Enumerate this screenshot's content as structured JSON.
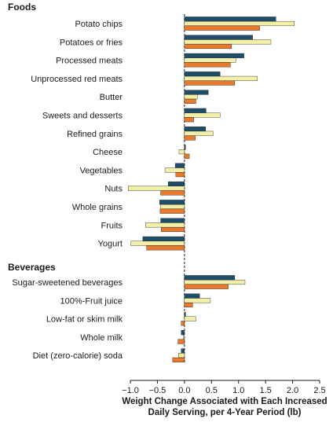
{
  "chart_data": {
    "type": "bar",
    "orientation": "horizontal",
    "xlabel_lines": [
      "Weight Change Associated with Each Increased",
      "Daily Serving, per 4-Year Period (lb)"
    ],
    "xlim": [
      -1.0,
      2.5
    ],
    "xticks": [
      "−1.0",
      "−0.5",
      "0.0",
      "0.5",
      "1.0",
      "1.5",
      "2.0",
      "2.5"
    ],
    "xtick_values": [
      -1.0,
      -0.5,
      0.0,
      0.5,
      1.0,
      1.5,
      2.0,
      2.5
    ],
    "zero_line": "dashed",
    "series_colors": [
      "#1f4e6b",
      "#f2f0a8",
      "#e8792d"
    ],
    "groups": [
      {
        "title": "Foods",
        "categories": [
          "Potato chips",
          "Potatoes or fries",
          "Processed meats",
          "Unprocessed red meats",
          "Butter",
          "Sweets and desserts",
          "Refined grains",
          "Cheese",
          "Vegetables",
          "Nuts",
          "Whole grains",
          "Fruits",
          "Yogurt"
        ],
        "series": [
          {
            "values": [
              1.69,
              1.26,
              1.1,
              0.66,
              0.44,
              0.4,
              0.39,
              0.02,
              -0.17,
              -0.3,
              -0.46,
              -0.44,
              -0.77
            ]
          },
          {
            "values": [
              2.03,
              1.6,
              0.95,
              1.35,
              0.24,
              0.66,
              0.53,
              -0.1,
              -0.36,
              -1.04,
              -0.44,
              -0.72,
              -0.99
            ]
          },
          {
            "values": [
              1.39,
              0.87,
              0.85,
              0.93,
              0.21,
              0.17,
              0.2,
              0.09,
              -0.16,
              -0.44,
              -0.45,
              -0.43,
              -0.7
            ]
          }
        ]
      },
      {
        "title": "Beverages",
        "categories": [
          "Sugar-sweetened beverages",
          "100%-Fruit juice",
          "Low-fat or skim milk",
          "Whole milk",
          "Diet (zero-calorie) soda"
        ],
        "series": [
          {
            "values": [
              0.93,
              0.28,
              0.02,
              -0.06,
              -0.06
            ]
          },
          {
            "values": [
              1.12,
              0.48,
              0.21,
              -0.02,
              -0.11
            ]
          },
          {
            "values": [
              0.81,
              0.15,
              -0.06,
              -0.12,
              -0.22
            ]
          }
        ]
      }
    ]
  }
}
